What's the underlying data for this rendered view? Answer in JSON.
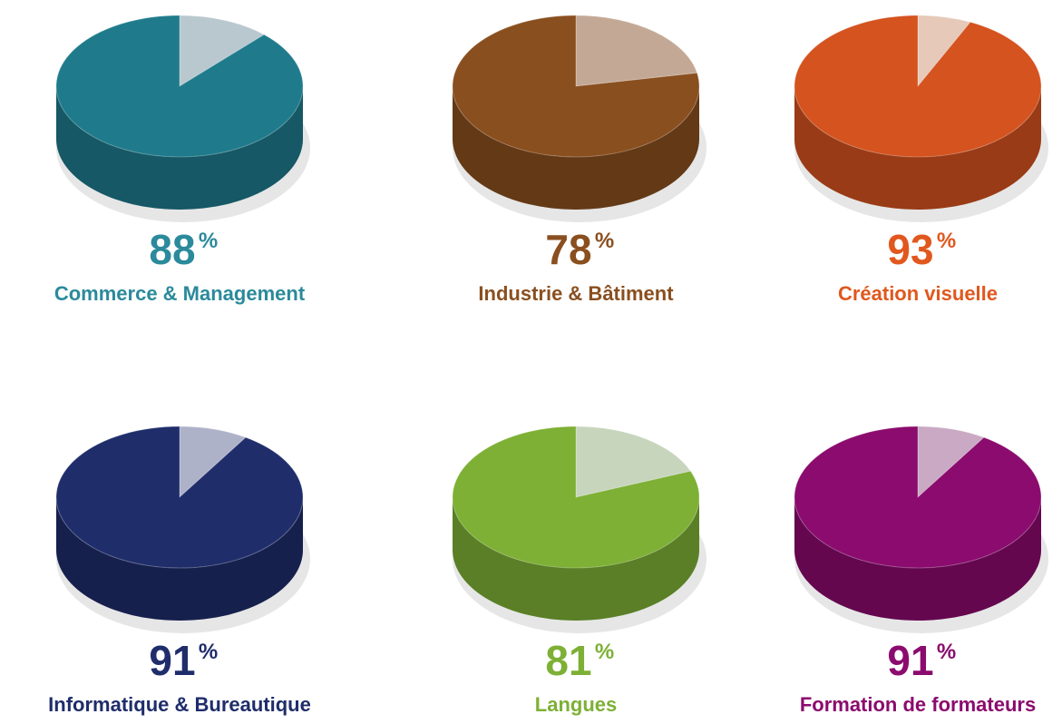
{
  "chart_data": [
    {
      "type": "pie",
      "title": "Commerce & Management",
      "values": [
        88,
        12
      ],
      "colors": [
        "#1f7b8c",
        "#b9c8cf"
      ],
      "text_color": "#2b8a9b",
      "unit": "%"
    },
    {
      "type": "pie",
      "title": "Industrie & Bâtiment",
      "values": [
        78,
        22
      ],
      "colors": [
        "#8a4f1f",
        "#c3a995"
      ],
      "text_color": "#8a4f1f",
      "unit": "%"
    },
    {
      "type": "pie",
      "title": "Création visuelle",
      "values": [
        93,
        7
      ],
      "colors": [
        "#d4531f",
        "#e6c9b8"
      ],
      "text_color": "#e0581e",
      "unit": "%"
    },
    {
      "type": "pie",
      "title": "Informatique & Bureautique",
      "values": [
        91,
        9
      ],
      "colors": [
        "#1f2d6b",
        "#aeb2c9"
      ],
      "text_color": "#1f2d6b",
      "unit": "%"
    },
    {
      "type": "pie",
      "title": "Langues",
      "values": [
        81,
        19
      ],
      "colors": [
        "#7db035",
        "#c8d5bd"
      ],
      "text_color": "#7db035",
      "unit": "%"
    },
    {
      "type": "pie",
      "title": "Formation de formateurs",
      "values": [
        91,
        9
      ],
      "colors": [
        "#8b0b6e",
        "#c9a9c3"
      ],
      "text_color": "#8b0b6e",
      "unit": "%"
    }
  ]
}
